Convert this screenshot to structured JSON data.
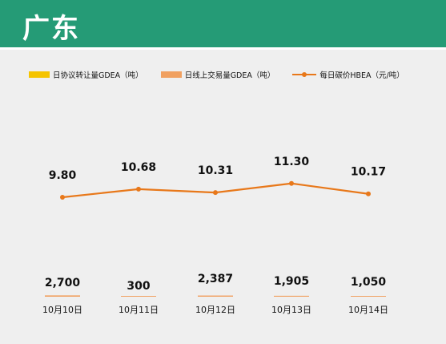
{
  "header": {
    "title": "广东"
  },
  "legend": {
    "items": [
      {
        "label": "日协议转让量GDEA（吨）",
        "color": "#f5c400",
        "kind": "bar"
      },
      {
        "label": "日线上交易量GDEA（吨）",
        "color": "#f0a060",
        "kind": "bar"
      },
      {
        "label": "每日碳价HBEA（元/吨）",
        "color": "#e8781a",
        "kind": "line"
      }
    ]
  },
  "chart_data": {
    "type": "bar",
    "categories": [
      "10月10日",
      "10月11日",
      "10月12日",
      "10月13日",
      "10月14日"
    ],
    "series": [
      {
        "name": "日协议转让量GDEA（吨）",
        "type": "bar",
        "color": "#f5c400",
        "values": [
          0,
          0,
          0,
          0,
          0
        ]
      },
      {
        "name": "日线上交易量GDEA（吨）",
        "type": "bar",
        "color": "#f0a060",
        "values": [
          2700,
          300,
          2387,
          1905,
          1050
        ]
      },
      {
        "name": "每日碳价HBEA（元/吨）",
        "type": "line",
        "color": "#e8781a",
        "values": [
          9.8,
          10.68,
          10.31,
          11.3,
          10.17
        ]
      }
    ],
    "volume_labels": [
      "2,700",
      "300",
      "2,387",
      "1,905",
      "1,050"
    ],
    "price_labels": [
      "9.80",
      "10.68",
      "10.31",
      "11.30",
      "10.17"
    ],
    "grid": false,
    "legend_position": "top-left"
  }
}
